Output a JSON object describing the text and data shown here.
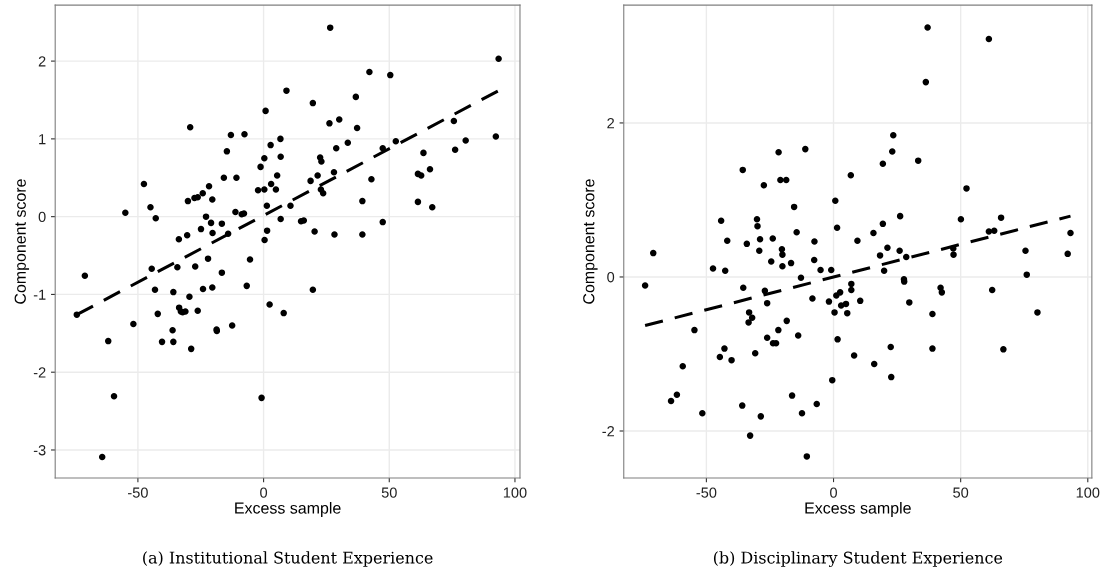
{
  "chart_data": [
    {
      "type": "scatter",
      "xlabel": "Excess sample",
      "ylabel": "Component score",
      "annotations": [
        "(a) Institutional Student Experience"
      ],
      "xlim": [
        -82.9,
        102
      ],
      "ylim": [
        -3.36,
        2.72
      ],
      "xticks": [
        -50,
        0,
        50,
        100
      ],
      "yticks": [
        -3,
        -2,
        -1,
        0,
        1,
        2
      ],
      "grid": true,
      "legend": false,
      "series": [
        {
          "type": "scatter",
          "color": "#000000",
          "marker": "circle",
          "x": [
            -74.3,
            -71.1,
            -61.8,
            -64.2,
            -59.5,
            -55.0,
            -51.8,
            -47.6,
            -45.0,
            -44.5,
            -43.2,
            -42.9,
            -42.1,
            -40.4,
            -36.2,
            -35.9,
            -35.9,
            -34.3,
            -33.7,
            -33.6,
            -32.9,
            -32.2,
            -31.1,
            -30.4,
            -30.1,
            -29.2,
            -29.5,
            -28.8,
            -27.5,
            -27.2,
            -26.2,
            -26.2,
            -24.9,
            -24.2,
            -24.1,
            -22.9,
            -22.1,
            -21.7,
            -20.9,
            -20.4,
            -20.4,
            -20.3,
            -18.7,
            -18.6,
            -16.6,
            -16.6,
            -15.8,
            -14.6,
            -14.1,
            -13.0,
            -12.5,
            -11.2,
            -10.8,
            -8.7,
            -7.8,
            -7.6,
            -6.7,
            -5.4,
            -2.2,
            -1.2,
            -0.8,
            0.3,
            0.3,
            0.4,
            0.8,
            1.3,
            1.4,
            2.4,
            2.8,
            3.0,
            4.9,
            5.4,
            6.7,
            6.8,
            6.8,
            8.0,
            9.1,
            10.7,
            14.9,
            16.0,
            19.6,
            18.7,
            20.3,
            21.5,
            19.6,
            22.5,
            23.0,
            22.8,
            23.7,
            26.2,
            26.5,
            28.0,
            28.2,
            28.9,
            30.1,
            33.5,
            36.7,
            37.2,
            39.3,
            39.3,
            42.1,
            42.9,
            47.4,
            47.4,
            50.4,
            52.6,
            61.4,
            62.7,
            61.4,
            63.6,
            66.2,
            67.1,
            75.7,
            76.2,
            80.4,
            92.4,
            93.5
          ],
          "values": [
            -1.26,
            -0.76,
            -1.6,
            -3.09,
            -2.31,
            0.05,
            -1.38,
            0.42,
            0.12,
            -0.67,
            -0.94,
            -0.02,
            -1.25,
            -1.61,
            -1.46,
            -1.61,
            -0.97,
            -0.65,
            -0.29,
            -1.17,
            -1.22,
            -1.23,
            -1.22,
            -0.24,
            0.2,
            1.15,
            -1.03,
            -1.7,
            0.24,
            -0.64,
            -1.21,
            0.25,
            -0.16,
            0.3,
            -0.93,
            0.0,
            -0.54,
            0.39,
            -0.08,
            0.22,
            -0.91,
            -0.21,
            -1.45,
            -1.47,
            -0.09,
            -0.72,
            0.5,
            0.84,
            -0.22,
            1.05,
            -1.4,
            0.06,
            0.5,
            0.03,
            0.04,
            1.06,
            -0.89,
            -0.55,
            0.34,
            0.64,
            -2.33,
            0.75,
            0.35,
            -0.3,
            1.36,
            0.14,
            -0.18,
            -1.13,
            0.92,
            0.42,
            0.35,
            0.53,
            1.0,
            0.77,
            -0.03,
            -1.24,
            1.62,
            0.14,
            -0.06,
            -0.05,
            1.46,
            0.46,
            -0.19,
            0.53,
            -0.94,
            0.76,
            0.71,
            0.35,
            0.3,
            1.2,
            2.43,
            0.57,
            -0.23,
            0.88,
            1.25,
            0.95,
            1.54,
            1.14,
            0.2,
            -0.23,
            1.86,
            0.48,
            0.88,
            -0.07,
            1.82,
            0.97,
            0.55,
            0.53,
            0.19,
            0.82,
            0.61,
            0.12,
            1.23,
            0.86,
            0.98,
            1.03,
            2.03
          ]
        },
        {
          "type": "line",
          "color": "#000000",
          "line_style": "dashed",
          "x": [
            -74.3,
            93.5
          ],
          "values": [
            -1.26,
            1.62
          ]
        }
      ]
    },
    {
      "type": "scatter",
      "xlabel": "Excess sample",
      "ylabel": "Component score",
      "annotations": [
        "(b) Disciplinary Student Experience"
      ],
      "xlim": [
        -82.5,
        101.6
      ],
      "ylim": [
        -2.61,
        3.53
      ],
      "xticks": [
        -50,
        0,
        50,
        100
      ],
      "yticks": [
        -2,
        0,
        2
      ],
      "grid": true,
      "legend": false,
      "series": [
        {
          "type": "scatter",
          "color": "#000000",
          "marker": "circle",
          "x": [
            -74.1,
            -70.9,
            -63.9,
            -61.6,
            -59.3,
            -54.7,
            -51.6,
            -47.4,
            -44.7,
            -44.2,
            -42.9,
            -42.6,
            -41.8,
            -40.1,
            -35.9,
            -35.7,
            -35.5,
            -34.1,
            -33.4,
            -33.2,
            -32.8,
            -32.0,
            -30.8,
            -30.1,
            -29.9,
            -29.2,
            -28.9,
            -28.6,
            -27.4,
            -27.0,
            -26.1,
            -26.1,
            -24.5,
            -23.9,
            -23.8,
            -22.6,
            -21.7,
            -21.6,
            -20.9,
            -20.3,
            -20.1,
            -20.1,
            -18.6,
            -18.4,
            -16.7,
            -16.3,
            -15.5,
            -14.5,
            -13.9,
            -12.8,
            -12.4,
            -11.1,
            -10.5,
            -8.3,
            -7.6,
            -7.5,
            -6.6,
            -5.1,
            -1.8,
            -0.9,
            -0.5,
            0.7,
            0.4,
            1.1,
            1.4,
            1.6,
            2.6,
            3.0,
            4.9,
            5.4,
            6.8,
            7.0,
            7.0,
            8.1,
            9.4,
            10.5,
            16.0,
            15.7,
            18.3,
            19.4,
            19.4,
            19.9,
            21.2,
            22.5,
            22.7,
            23.1,
            23.5,
            26.0,
            26.2,
            27.7,
            27.8,
            28.6,
            29.8,
            33.3,
            36.3,
            37.0,
            38.9,
            38.9,
            42.1,
            42.6,
            47.1,
            47.2,
            50.1,
            52.3,
            61.1,
            61.1,
            63.2,
            62.4,
            65.9,
            66.8,
            75.5,
            76.0,
            80.2,
            92.1,
            93.2
          ],
          "values": [
            -0.11,
            0.31,
            -1.61,
            -1.53,
            -1.16,
            -0.69,
            -1.77,
            0.11,
            -1.04,
            0.73,
            -0.93,
            0.08,
            0.47,
            -1.08,
            -1.67,
            1.39,
            -0.14,
            0.43,
            -0.59,
            -0.46,
            -2.06,
            -0.53,
            -0.99,
            0.75,
            0.66,
            0.34,
            0.49,
            -1.81,
            1.19,
            -0.18,
            -0.34,
            -0.79,
            0.2,
            0.5,
            -0.86,
            -0.86,
            -0.69,
            1.62,
            1.26,
            0.36,
            0.29,
            0.14,
            1.26,
            -0.57,
            0.18,
            -1.54,
            0.91,
            0.58,
            -0.76,
            -0.01,
            -1.77,
            1.66,
            -2.33,
            -0.28,
            0.22,
            0.46,
            -1.65,
            0.09,
            -0.32,
            0.09,
            -1.34,
            0.99,
            -0.46,
            -0.24,
            0.64,
            -0.81,
            -0.2,
            -0.37,
            -0.35,
            -0.47,
            1.32,
            -0.09,
            -0.17,
            -1.02,
            0.47,
            -0.31,
            -1.13,
            0.57,
            0.28,
            1.47,
            0.69,
            0.08,
            0.38,
            -0.91,
            -1.3,
            1.63,
            1.84,
            0.34,
            0.79,
            -0.03,
            -0.06,
            0.26,
            -0.33,
            1.51,
            2.53,
            3.24,
            -0.48,
            -0.93,
            -0.14,
            -0.2,
            0.37,
            0.29,
            0.75,
            1.15,
            3.09,
            0.59,
            0.6,
            -0.17,
            0.77,
            -0.94,
            0.34,
            0.03,
            -0.46,
            0.3,
            0.57
          ]
        },
        {
          "type": "line",
          "color": "#000000",
          "line_style": "dashed",
          "x": [
            -74.1,
            93.2
          ],
          "values": [
            -0.63,
            0.79
          ]
        }
      ]
    }
  ]
}
